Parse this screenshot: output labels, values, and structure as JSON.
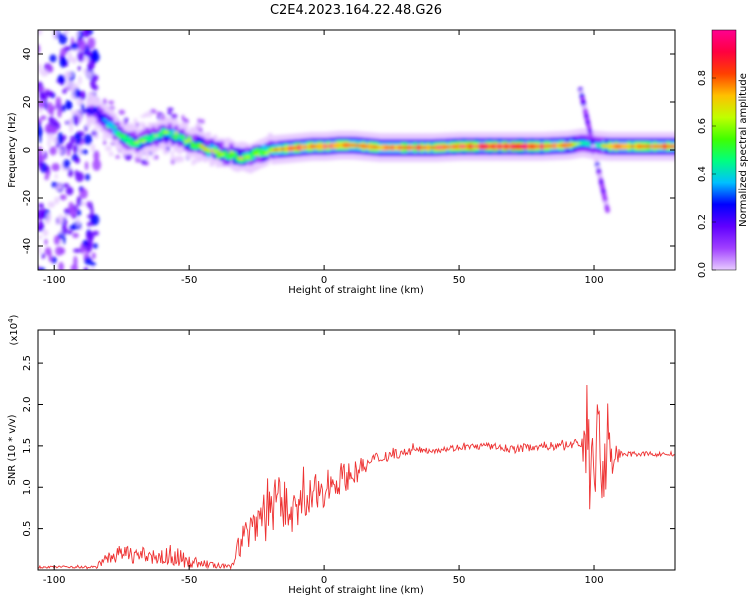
{
  "title": "C2E4.2023.164.22.48.G26",
  "chart_data": [
    {
      "type": "heatmap",
      "xlabel": "Height of straight line (km)",
      "ylabel": "Frequency (Hz)",
      "xlim": [
        -106,
        130
      ],
      "ylim": [
        -50,
        50
      ],
      "xticks": [
        -100,
        -50,
        0,
        50,
        100
      ],
      "yticks": [
        -40,
        -20,
        0,
        20,
        40
      ],
      "colorbar": {
        "label": "Normalized spectral amplitude",
        "range": [
          0,
          1
        ],
        "ticks": [
          "0.0",
          "0.2",
          "0.4",
          "0.6",
          "0.8"
        ],
        "colors": [
          "#e8ccff",
          "#a040ff",
          "#6000ff",
          "#0000ff",
          "#00c0ff",
          "#00ff80",
          "#40ff00",
          "#c0ff00",
          "#ffc000",
          "#ff4000",
          "#ff0040",
          "#ff0090"
        ]
      },
      "ridge": {
        "x": [
          -85,
          -80,
          -75,
          -70,
          -65,
          -60,
          -55,
          -50,
          -45,
          -40,
          -35,
          -30,
          -25,
          -20,
          -15,
          -10,
          -5,
          0,
          5,
          10,
          20,
          30,
          40,
          50,
          60,
          70,
          80,
          90,
          95,
          100,
          105,
          110,
          120,
          130
        ],
        "freq": [
          16,
          10,
          5,
          3,
          5,
          7,
          6,
          3,
          1,
          -1,
          -2,
          -4,
          -1,
          0,
          0.5,
          1,
          1.5,
          1.5,
          2,
          2,
          1,
          1,
          1,
          1.5,
          1.5,
          1.5,
          1.5,
          2,
          3,
          2,
          1.5,
          1.5,
          1.5,
          1.5
        ],
        "strength": [
          0.3,
          0.45,
          0.5,
          0.55,
          0.55,
          0.55,
          0.55,
          0.6,
          0.6,
          0.6,
          0.6,
          0.65,
          0.65,
          0.7,
          0.8,
          0.85,
          0.85,
          0.85,
          0.85,
          0.85,
          0.75,
          0.8,
          0.85,
          0.9,
          0.9,
          0.95,
          0.9,
          0.75,
          0.5,
          0.45,
          0.75,
          0.8,
          0.85,
          0.85
        ]
      },
      "streak": {
        "x_start": 95,
        "f_start": 25,
        "x_end": 105,
        "f_end": -25
      }
    },
    {
      "type": "line",
      "xlabel": "Height of straight line (km)",
      "ylabel": "SNR (10 * v/v)",
      "ymultiplier": "(x10",
      "ymultiplier_exp": "4",
      "ymultiplier_close": ")",
      "xlim": [
        -106,
        130
      ],
      "ylim": [
        0,
        29000
      ],
      "xticks": [
        -100,
        -50,
        0,
        50,
        100
      ],
      "yticks": [
        {
          "v": 5000,
          "label": "0.5"
        },
        {
          "v": 10000,
          "label": "1.0"
        },
        {
          "v": 15000,
          "label": "1.5"
        },
        {
          "v": 20000,
          "label": "2.0"
        },
        {
          "v": 25000,
          "label": "2.5"
        }
      ],
      "series": [
        {
          "color": "#ee3333",
          "x": [
            -106,
            -95,
            -85,
            -80,
            -75,
            -70,
            -65,
            -60,
            -55,
            -50,
            -45,
            -40,
            -35,
            -30,
            -25,
            -20,
            -15,
            -10,
            -5,
            0,
            5,
            10,
            15,
            20,
            25,
            30,
            35,
            40,
            50,
            60,
            70,
            80,
            90,
            95,
            97,
            98,
            100,
            102,
            104,
            106,
            110,
            120,
            130
          ],
          "y": [
            300,
            400,
            300,
            1500,
            2000,
            1800,
            1700,
            1500,
            1600,
            1000,
            800,
            500,
            300,
            4000,
            6000,
            8000,
            7500,
            7000,
            8500,
            10000,
            11000,
            11500,
            12500,
            13500,
            14000,
            14200,
            14500,
            14500,
            14800,
            15000,
            14600,
            15000,
            15000,
            15500,
            14000,
            16000,
            14000,
            14500,
            13000,
            14000,
            14000,
            14000,
            14000
          ],
          "noise": [
            100,
            150,
            200,
            700,
            1100,
            1000,
            1000,
            1100,
            1200,
            800,
            500,
            400,
            300,
            2000,
            3000,
            4500,
            3000,
            2500,
            2600,
            2400,
            2000,
            1600,
            1200,
            900,
            700,
            500,
            400,
            400,
            400,
            400,
            500,
            500,
            600,
            800,
            9000,
            10000,
            6000,
            7000,
            8000,
            4000,
            300,
            300,
            300
          ]
        }
      ]
    }
  ]
}
